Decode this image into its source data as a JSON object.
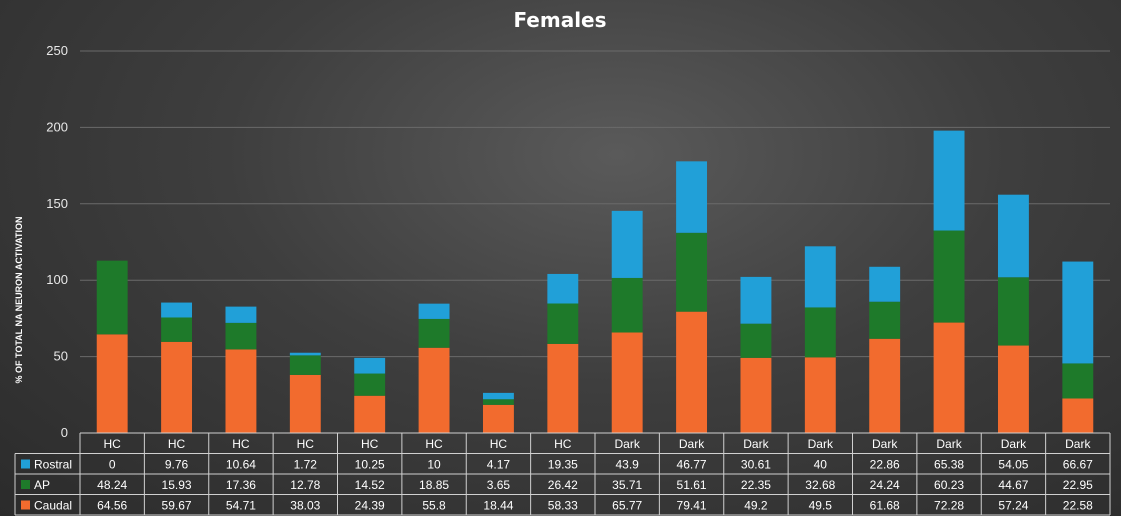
{
  "chart_data": {
    "type": "bar",
    "stacked": true,
    "title": "Females",
    "ylabel": "% OF TOTAL NA NEURON ACTIVATION",
    "xlabel": "",
    "ylim": [
      0,
      250
    ],
    "yticks": [
      0,
      50,
      100,
      150,
      200,
      250
    ],
    "grid": true,
    "legend_position": "in-table",
    "categories": [
      "HC",
      "HC",
      "HC",
      "HC",
      "HC",
      "HC",
      "HC",
      "HC",
      "Dark",
      "Dark",
      "Dark",
      "Dark",
      "Dark",
      "Dark",
      "Dark",
      "Dark"
    ],
    "series": [
      {
        "name": "Caudal",
        "color": "#f26b2e",
        "values": [
          64.56,
          59.67,
          54.71,
          38.03,
          24.39,
          55.8,
          18.44,
          58.33,
          65.77,
          79.41,
          49.2,
          49.5,
          61.68,
          72.28,
          57.24,
          22.58
        ]
      },
      {
        "name": "AP",
        "color": "#1e7a2a",
        "values": [
          48.24,
          15.93,
          17.36,
          12.78,
          14.52,
          18.85,
          3.65,
          26.42,
          35.71,
          51.61,
          22.35,
          32.68,
          24.24,
          60.23,
          44.67,
          22.95
        ]
      },
      {
        "name": "Rostral",
        "color": "#21a0d8",
        "values": [
          0,
          9.76,
          10.64,
          1.72,
          10.25,
          10,
          4.17,
          19.35,
          43.9,
          46.77,
          30.61,
          40,
          22.86,
          65.38,
          54.05,
          66.67
        ]
      }
    ],
    "table_rows": [
      {
        "name": "Rostral",
        "color": "#21a0d8",
        "values": [
          "0",
          "9.76",
          "10.64",
          "1.72",
          "10.25",
          "10",
          "4.17",
          "19.35",
          "43.9",
          "46.77",
          "30.61",
          "40",
          "22.86",
          "65.38",
          "54.05",
          "66.67"
        ]
      },
      {
        "name": "AP",
        "color": "#1e7a2a",
        "values": [
          "48.24",
          "15.93",
          "17.36",
          "12.78",
          "14.52",
          "18.85",
          "3.65",
          "26.42",
          "35.71",
          "51.61",
          "22.35",
          "32.68",
          "24.24",
          "60.23",
          "44.67",
          "22.95"
        ]
      },
      {
        "name": "Caudal",
        "color": "#f26b2e",
        "values": [
          "64.56",
          "59.67",
          "54.71",
          "38.03",
          "24.39",
          "55.8",
          "18.44",
          "58.33",
          "65.77",
          "79.41",
          "49.2",
          "49.5",
          "61.68",
          "72.28",
          "57.24",
          "22.58"
        ]
      }
    ]
  }
}
